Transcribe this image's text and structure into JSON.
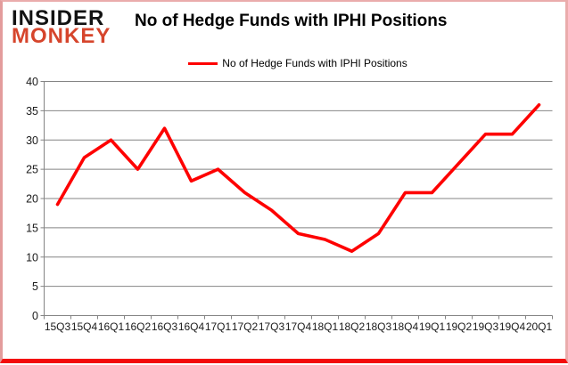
{
  "logo": {
    "line1": "INSIDER",
    "line2": "MONKEY",
    "line1_color": "#121212",
    "line2_color": "#d6452c"
  },
  "header": {
    "title": "No of Hedge Funds with IPHI Positions"
  },
  "legend": {
    "label": "No of Hedge Funds with IPHI Positions",
    "line_color": "#fe0000"
  },
  "chart_data": {
    "type": "line",
    "title": "No of Hedge Funds with IPHI Positions",
    "categories": [
      "15Q3",
      "15Q4",
      "16Q1",
      "16Q2",
      "16Q3",
      "16Q4",
      "17Q1",
      "17Q2",
      "17Q3",
      "17Q4",
      "18Q1",
      "18Q2",
      "18Q3",
      "18Q4",
      "19Q1",
      "19Q2",
      "19Q3",
      "19Q4",
      "20Q1"
    ],
    "series": [
      {
        "name": "No of Hedge Funds with IPHI Positions",
        "color": "#fe0000",
        "values": [
          19,
          27,
          30,
          25,
          32,
          23,
          25,
          21,
          18,
          14,
          13,
          11,
          14,
          21,
          21,
          26,
          31,
          31,
          36
        ]
      }
    ],
    "xlabel": "",
    "ylabel": "",
    "ylim": [
      0,
      40
    ],
    "ytick_step": 5,
    "grid": true,
    "gridline_color": "#848484",
    "axis_color": "#848484",
    "tick_label_color": "#1a1a1a",
    "legend_position": "top-center"
  }
}
